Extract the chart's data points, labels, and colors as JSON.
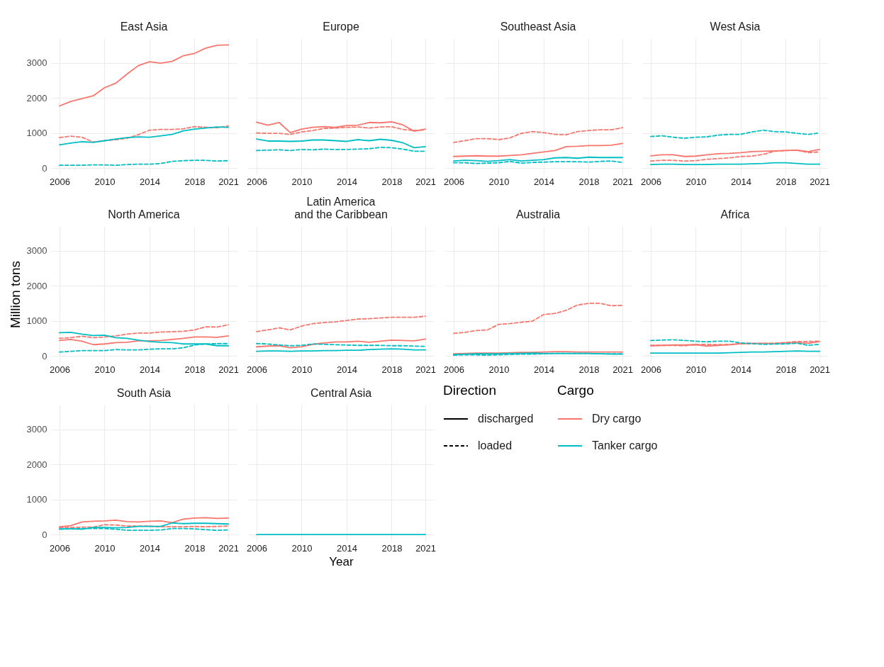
{
  "chart_data": [
    {
      "type": "line",
      "title": "East Asia",
      "x": [
        2006,
        2007,
        2008,
        2009,
        2010,
        2011,
        2012,
        2013,
        2014,
        2015,
        2016,
        2017,
        2018,
        2019,
        2020,
        2021
      ],
      "xlim": [
        2005.25,
        2021.75
      ],
      "ylim": [
        -180,
        3700
      ],
      "xticks": [
        2006,
        2010,
        2014,
        2018,
        2021
      ],
      "yticks": [
        0,
        1000,
        2000,
        3000
      ],
      "grid": true,
      "series": [
        {
          "color": "#f8766d",
          "line_style": "solid",
          "values": [
            1770,
            1900,
            1980,
            2060,
            2290,
            2420,
            2680,
            2920,
            3030,
            2990,
            3040,
            3200,
            3270,
            3420,
            3500,
            3510
          ]
        },
        {
          "color": "#f8766d",
          "line_style": "dashed",
          "values": [
            870,
            910,
            880,
            740,
            780,
            810,
            850,
            950,
            1080,
            1100,
            1100,
            1120,
            1180,
            1160,
            1150,
            1200
          ]
        },
        {
          "color": "#00bfc4",
          "line_style": "solid",
          "values": [
            660,
            710,
            750,
            730,
            780,
            830,
            870,
            890,
            880,
            920,
            960,
            1060,
            1110,
            1140,
            1170,
            1160
          ]
        },
        {
          "color": "#00bfc4",
          "line_style": "dashed",
          "values": [
            80,
            80,
            80,
            90,
            90,
            80,
            100,
            110,
            110,
            130,
            190,
            210,
            220,
            220,
            200,
            210
          ]
        }
      ]
    },
    {
      "type": "line",
      "title": "Europe",
      "x": [
        2006,
        2007,
        2008,
        2009,
        2010,
        2011,
        2012,
        2013,
        2014,
        2015,
        2016,
        2017,
        2018,
        2019,
        2020,
        2021
      ],
      "xlim": [
        2005.25,
        2021.75
      ],
      "ylim": [
        -180,
        3700
      ],
      "xticks": [
        2006,
        2010,
        2014,
        2018,
        2021
      ],
      "yticks": [
        0,
        1000,
        2000,
        3000
      ],
      "grid": true,
      "tick_labels": "x",
      "series": [
        {
          "color": "#f8766d",
          "line_style": "solid",
          "values": [
            1310,
            1220,
            1300,
            1010,
            1110,
            1160,
            1180,
            1160,
            1210,
            1220,
            1300,
            1290,
            1320,
            1230,
            1050,
            1110
          ]
        },
        {
          "color": "#f8766d",
          "line_style": "dashed",
          "values": [
            1000,
            990,
            990,
            960,
            1030,
            1070,
            1130,
            1140,
            1160,
            1170,
            1140,
            1170,
            1180,
            1100,
            1070,
            1090
          ]
        },
        {
          "color": "#00bfc4",
          "line_style": "solid",
          "values": [
            830,
            770,
            770,
            760,
            770,
            800,
            800,
            780,
            760,
            810,
            780,
            820,
            790,
            720,
            580,
            610
          ]
        },
        {
          "color": "#00bfc4",
          "line_style": "dashed",
          "values": [
            500,
            510,
            520,
            500,
            530,
            520,
            540,
            530,
            530,
            540,
            550,
            590,
            580,
            540,
            480,
            480
          ]
        }
      ]
    },
    {
      "type": "line",
      "title": "Southeast Asia",
      "x": [
        2006,
        2007,
        2008,
        2009,
        2010,
        2011,
        2012,
        2013,
        2014,
        2015,
        2016,
        2017,
        2018,
        2019,
        2020,
        2021
      ],
      "xlim": [
        2005.25,
        2021.75
      ],
      "ylim": [
        -180,
        3700
      ],
      "xticks": [
        2006,
        2010,
        2014,
        2018,
        2021
      ],
      "yticks": [
        0,
        1000,
        2000,
        3000
      ],
      "grid": true,
      "tick_labels": "x",
      "series": [
        {
          "color": "#f8766d",
          "line_style": "solid",
          "values": [
            330,
            340,
            350,
            340,
            340,
            360,
            380,
            420,
            460,
            500,
            610,
            620,
            640,
            640,
            650,
            700
          ]
        },
        {
          "color": "#f8766d",
          "line_style": "dashed",
          "values": [
            730,
            780,
            840,
            840,
            810,
            860,
            990,
            1040,
            1010,
            960,
            950,
            1040,
            1070,
            1090,
            1090,
            1150
          ]
        },
        {
          "color": "#00bfc4",
          "line_style": "solid",
          "values": [
            200,
            220,
            210,
            190,
            210,
            240,
            200,
            220,
            240,
            290,
            300,
            280,
            310,
            300,
            300,
            300
          ]
        },
        {
          "color": "#00bfc4",
          "line_style": "dashed",
          "values": [
            150,
            150,
            130,
            140,
            150,
            190,
            140,
            160,
            170,
            180,
            180,
            180,
            170,
            190,
            200,
            160
          ]
        }
      ]
    },
    {
      "type": "line",
      "title": "West Asia",
      "x": [
        2006,
        2007,
        2008,
        2009,
        2010,
        2011,
        2012,
        2013,
        2014,
        2015,
        2016,
        2017,
        2018,
        2019,
        2020,
        2021
      ],
      "xlim": [
        2005.25,
        2021.75
      ],
      "ylim": [
        -180,
        3700
      ],
      "xticks": [
        2006,
        2010,
        2014,
        2018,
        2021
      ],
      "yticks": [
        0,
        1000,
        2000,
        3000
      ],
      "grid": true,
      "tick_labels": "x",
      "series": [
        {
          "color": "#f8766d",
          "line_style": "solid",
          "values": [
            350,
            380,
            380,
            330,
            340,
            380,
            410,
            420,
            440,
            470,
            480,
            490,
            500,
            510,
            470,
            530
          ]
        },
        {
          "color": "#f8766d",
          "line_style": "dashed",
          "values": [
            200,
            220,
            220,
            200,
            210,
            250,
            270,
            290,
            330,
            340,
            390,
            480,
            500,
            510,
            440,
            460
          ]
        },
        {
          "color": "#00bfc4",
          "line_style": "solid",
          "values": [
            100,
            110,
            110,
            100,
            100,
            100,
            110,
            110,
            110,
            120,
            130,
            150,
            150,
            130,
            110,
            110
          ]
        },
        {
          "color": "#00bfc4",
          "line_style": "dashed",
          "values": [
            900,
            920,
            880,
            850,
            880,
            890,
            940,
            960,
            960,
            1030,
            1080,
            1040,
            1030,
            990,
            960,
            1000
          ]
        }
      ]
    },
    {
      "type": "line",
      "title": "North America",
      "ylabel": "Million tons",
      "x": [
        2006,
        2007,
        2008,
        2009,
        2010,
        2011,
        2012,
        2013,
        2014,
        2015,
        2016,
        2017,
        2018,
        2019,
        2020,
        2021
      ],
      "xlim": [
        2005.25,
        2021.75
      ],
      "ylim": [
        -180,
        3700
      ],
      "xticks": [
        2006,
        2010,
        2014,
        2018,
        2021
      ],
      "yticks": [
        0,
        1000,
        2000,
        3000
      ],
      "grid": true,
      "series": [
        {
          "color": "#f8766d",
          "line_style": "solid",
          "values": [
            440,
            470,
            420,
            320,
            340,
            380,
            390,
            430,
            430,
            440,
            470,
            500,
            540,
            540,
            530,
            570
          ]
        },
        {
          "color": "#f8766d",
          "line_style": "dashed",
          "values": [
            500,
            520,
            560,
            520,
            540,
            570,
            620,
            650,
            650,
            680,
            690,
            700,
            740,
            830,
            820,
            890
          ]
        },
        {
          "color": "#00bfc4",
          "line_style": "solid",
          "values": [
            660,
            670,
            620,
            580,
            590,
            520,
            500,
            450,
            410,
            390,
            380,
            340,
            340,
            340,
            290,
            290
          ]
        },
        {
          "color": "#00bfc4",
          "line_style": "dashed",
          "values": [
            110,
            130,
            150,
            150,
            150,
            180,
            170,
            170,
            190,
            200,
            200,
            230,
            310,
            340,
            350,
            350
          ]
        }
      ]
    },
    {
      "type": "line",
      "title": "Latin America\nand the Caribbean",
      "x": [
        2006,
        2007,
        2008,
        2009,
        2010,
        2011,
        2012,
        2013,
        2014,
        2015,
        2016,
        2017,
        2018,
        2019,
        2020,
        2021
      ],
      "xlim": [
        2005.25,
        2021.75
      ],
      "ylim": [
        -180,
        3700
      ],
      "xticks": [
        2006,
        2010,
        2014,
        2018,
        2021
      ],
      "yticks": [
        0,
        1000,
        2000,
        3000
      ],
      "grid": true,
      "tick_labels": "x",
      "series": [
        {
          "color": "#f8766d",
          "line_style": "solid",
          "values": [
            260,
            280,
            290,
            230,
            260,
            330,
            370,
            400,
            400,
            420,
            390,
            420,
            450,
            440,
            430,
            480
          ]
        },
        {
          "color": "#f8766d",
          "line_style": "dashed",
          "values": [
            690,
            740,
            800,
            740,
            850,
            920,
            950,
            970,
            1010,
            1050,
            1060,
            1080,
            1100,
            1100,
            1100,
            1130
          ]
        },
        {
          "color": "#00bfc4",
          "line_style": "solid",
          "values": [
            130,
            140,
            140,
            130,
            140,
            140,
            150,
            150,
            160,
            160,
            180,
            190,
            200,
            190,
            170,
            170
          ]
        },
        {
          "color": "#00bfc4",
          "line_style": "dashed",
          "values": [
            350,
            340,
            310,
            290,
            300,
            340,
            330,
            320,
            310,
            300,
            300,
            300,
            290,
            290,
            280,
            270
          ]
        }
      ]
    },
    {
      "type": "line",
      "title": "Australia",
      "x": [
        2006,
        2007,
        2008,
        2009,
        2010,
        2011,
        2012,
        2013,
        2014,
        2015,
        2016,
        2017,
        2018,
        2019,
        2020,
        2021
      ],
      "xlim": [
        2005.25,
        2021.75
      ],
      "ylim": [
        -180,
        3700
      ],
      "xticks": [
        2006,
        2010,
        2014,
        2018,
        2021
      ],
      "yticks": [
        0,
        1000,
        2000,
        3000
      ],
      "grid": true,
      "tick_labels": "x",
      "series": [
        {
          "color": "#f8766d",
          "line_style": "solid",
          "values": [
            60,
            70,
            80,
            80,
            80,
            90,
            100,
            100,
            110,
            120,
            120,
            110,
            110,
            110,
            110,
            110
          ]
        },
        {
          "color": "#f8766d",
          "line_style": "dashed",
          "values": [
            640,
            670,
            720,
            740,
            900,
            920,
            960,
            990,
            1180,
            1210,
            1300,
            1450,
            1500,
            1500,
            1430,
            1440
          ]
        },
        {
          "color": "#00bfc4",
          "line_style": "solid",
          "values": [
            40,
            50,
            60,
            60,
            60,
            70,
            70,
            80,
            70,
            70,
            70,
            70,
            70,
            60,
            50,
            50
          ]
        },
        {
          "color": "#00bfc4",
          "line_style": "dashed",
          "values": [
            20,
            30,
            30,
            20,
            30,
            40,
            50,
            50,
            60,
            70,
            70,
            70,
            70,
            60,
            60,
            60
          ]
        }
      ]
    },
    {
      "type": "line",
      "title": "Africa",
      "x": [
        2006,
        2007,
        2008,
        2009,
        2010,
        2011,
        2012,
        2013,
        2014,
        2015,
        2016,
        2017,
        2018,
        2019,
        2020,
        2021
      ],
      "xlim": [
        2005.25,
        2021.75
      ],
      "ylim": [
        -180,
        3700
      ],
      "xticks": [
        2006,
        2010,
        2014,
        2018,
        2021
      ],
      "yticks": [
        0,
        1000,
        2000,
        3000
      ],
      "grid": true,
      "tick_labels": "x",
      "series": [
        {
          "color": "#f8766d",
          "line_style": "solid",
          "values": [
            290,
            300,
            310,
            310,
            320,
            280,
            300,
            320,
            350,
            360,
            360,
            350,
            370,
            380,
            360,
            410
          ]
        },
        {
          "color": "#f8766d",
          "line_style": "dashed",
          "values": [
            300,
            300,
            300,
            290,
            320,
            330,
            320,
            320,
            350,
            350,
            350,
            360,
            380,
            410,
            410,
            420
          ]
        },
        {
          "color": "#00bfc4",
          "line_style": "solid",
          "values": [
            80,
            80,
            80,
            80,
            80,
            80,
            80,
            90,
            100,
            110,
            110,
            120,
            130,
            140,
            130,
            130
          ]
        },
        {
          "color": "#00bfc4",
          "line_style": "dashed",
          "values": [
            440,
            450,
            460,
            440,
            420,
            400,
            420,
            420,
            370,
            350,
            330,
            340,
            340,
            360,
            300,
            330
          ]
        }
      ]
    },
    {
      "type": "line",
      "title": "South Asia",
      "x": [
        2006,
        2007,
        2008,
        2009,
        2010,
        2011,
        2012,
        2013,
        2014,
        2015,
        2016,
        2017,
        2018,
        2019,
        2020,
        2021
      ],
      "xlim": [
        2005.25,
        2021.75
      ],
      "ylim": [
        -180,
        3700
      ],
      "xticks": [
        2006,
        2010,
        2014,
        2018,
        2021
      ],
      "yticks": [
        0,
        1000,
        2000,
        3000
      ],
      "grid": true,
      "series": [
        {
          "color": "#f8766d",
          "line_style": "solid",
          "values": [
            220,
            250,
            360,
            380,
            390,
            410,
            370,
            360,
            380,
            390,
            340,
            440,
            470,
            480,
            460,
            470
          ]
        },
        {
          "color": "#f8766d",
          "line_style": "dashed",
          "values": [
            200,
            200,
            210,
            210,
            280,
            270,
            240,
            240,
            240,
            220,
            220,
            220,
            230,
            220,
            230,
            240
          ]
        },
        {
          "color": "#00bfc4",
          "line_style": "solid",
          "values": [
            160,
            160,
            150,
            200,
            200,
            190,
            200,
            230,
            230,
            230,
            330,
            310,
            320,
            320,
            310,
            300
          ]
        },
        {
          "color": "#00bfc4",
          "line_style": "dashed",
          "values": [
            150,
            160,
            170,
            170,
            170,
            150,
            120,
            120,
            120,
            130,
            170,
            170,
            160,
            140,
            120,
            130
          ]
        }
      ]
    },
    {
      "type": "line",
      "title": "Central Asia",
      "xlabel": "Year",
      "x": [
        2006,
        2007,
        2008,
        2009,
        2010,
        2011,
        2012,
        2013,
        2014,
        2015,
        2016,
        2017,
        2018,
        2019,
        2020,
        2021
      ],
      "xlim": [
        2005.25,
        2021.75
      ],
      "ylim": [
        -180,
        3700
      ],
      "xticks": [
        2006,
        2010,
        2014,
        2018,
        2021
      ],
      "yticks": [
        0,
        1000,
        2000,
        3000
      ],
      "grid": true,
      "tick_labels": "x",
      "series": [
        {
          "color": "#00bfc4",
          "line_style": "solid",
          "values": [
            0,
            0,
            0,
            0,
            0,
            0,
            0,
            0,
            0,
            0,
            0,
            0,
            0,
            0,
            0,
            0
          ]
        }
      ]
    },
    {
      "type": "other",
      "legend_title": "Direction",
      "series": [
        {
          "name": "discharged",
          "line_style": "solid"
        },
        {
          "name": "loaded",
          "line_style": "dashed"
        }
      ]
    },
    {
      "type": "other",
      "legend_title": "Cargo",
      "series": [
        {
          "name": "Dry cargo",
          "color": "#f8766d"
        },
        {
          "name": "Tanker cargo",
          "color": "#00bfc4"
        }
      ]
    }
  ]
}
